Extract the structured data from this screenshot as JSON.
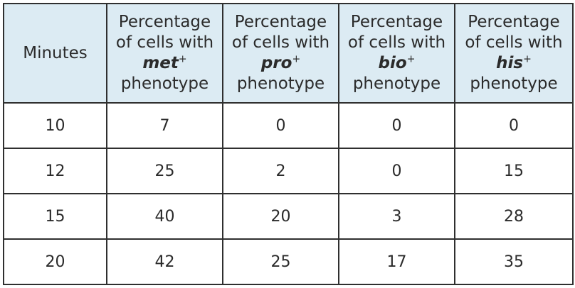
{
  "table": {
    "header": {
      "minutes": "Minutes",
      "columns": [
        {
          "line1": "Percentage",
          "line2": "of cells with",
          "gene": "met",
          "sup": "+",
          "line4": "phenotype"
        },
        {
          "line1": "Percentage",
          "line2": "of cells with",
          "gene": "pro",
          "sup": "+",
          "line4": "phenotype"
        },
        {
          "line1": "Percentage",
          "line2": "of cells with",
          "gene": "bio",
          "sup": "+",
          "line4": "phenotype"
        },
        {
          "line1": "Percentage",
          "line2": "of cells with",
          "gene": "his",
          "sup": "+",
          "line4": "phenotype"
        }
      ]
    },
    "rows": [
      [
        "10",
        "7",
        "0",
        "0",
        "0"
      ],
      [
        "12",
        "25",
        "2",
        "0",
        "15"
      ],
      [
        "15",
        "40",
        "20",
        "3",
        "28"
      ],
      [
        "20",
        "42",
        "25",
        "17",
        "35"
      ]
    ]
  },
  "colors": {
    "header_bg": "#dcebf3",
    "border": "#2f2f2f",
    "text": "#2b2b2b"
  }
}
